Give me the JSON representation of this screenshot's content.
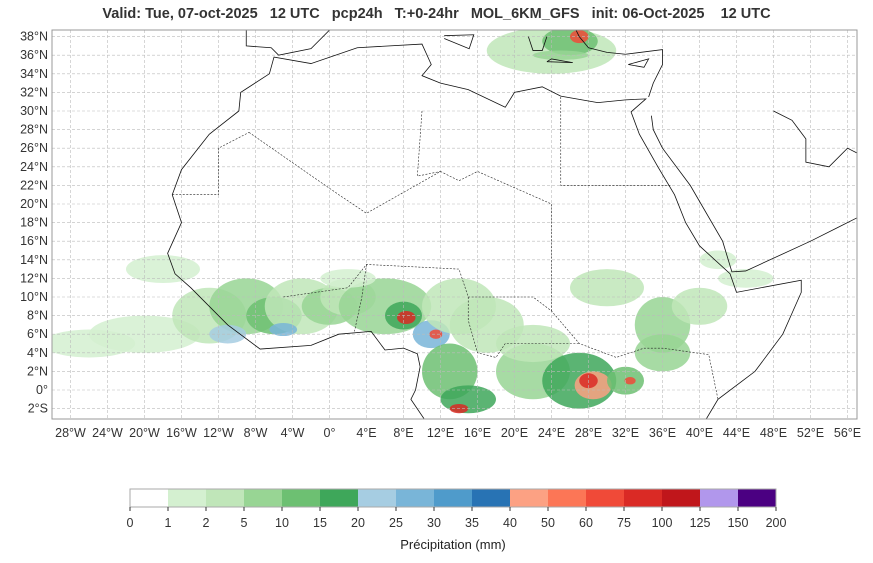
{
  "title": "Valid: Tue, 07-oct-2025   12 UTC   pcp24h   T:+0-24hr   MOL_6KM_GFS   init: 06-Oct-2025    12 UTC",
  "axes": {
    "lat_labels": [
      "2°S",
      "0°",
      "2°N",
      "4°N",
      "6°N",
      "8°N",
      "10°N",
      "12°N",
      "14°N",
      "16°N",
      "18°N",
      "20°N",
      "22°N",
      "24°N",
      "26°N",
      "28°N",
      "30°N",
      "32°N",
      "34°N",
      "36°N",
      "38°N"
    ],
    "lat_values": [
      -2,
      0,
      2,
      4,
      6,
      8,
      10,
      12,
      14,
      16,
      18,
      20,
      22,
      24,
      26,
      28,
      30,
      32,
      34,
      36,
      38
    ],
    "lon_labels": [
      "28°W",
      "24°W",
      "20°W",
      "16°W",
      "12°W",
      "8°W",
      "4°W",
      "0°",
      "4°E",
      "8°E",
      "12°E",
      "16°E",
      "20°E",
      "24°E",
      "28°E",
      "32°E",
      "36°E",
      "40°E",
      "44°E",
      "48°E",
      "52°E",
      "56°E"
    ],
    "lon_values": [
      -28,
      -24,
      -20,
      -16,
      -12,
      -8,
      -4,
      0,
      4,
      8,
      12,
      16,
      20,
      24,
      28,
      32,
      36,
      40,
      44,
      48,
      52,
      56
    ]
  },
  "colorbar": {
    "title": "Précipitation (mm)",
    "ticks": [
      "0",
      "1",
      "2",
      "5",
      "10",
      "15",
      "20",
      "25",
      "30",
      "35",
      "40",
      "50",
      "60",
      "75",
      "100",
      "125",
      "150",
      "200"
    ],
    "colors": [
      "#ffffff",
      "#d4f0d0",
      "#c0e6b9",
      "#98d594",
      "#6dc072",
      "#3ea75a",
      "#a6cde2",
      "#79b5d8",
      "#4f9bcb",
      "#2873b4",
      "#fca183",
      "#fc7656",
      "#f04a38",
      "#da2a25",
      "#c0161b",
      "#b197ec",
      "#4b0082"
    ]
  }
}
